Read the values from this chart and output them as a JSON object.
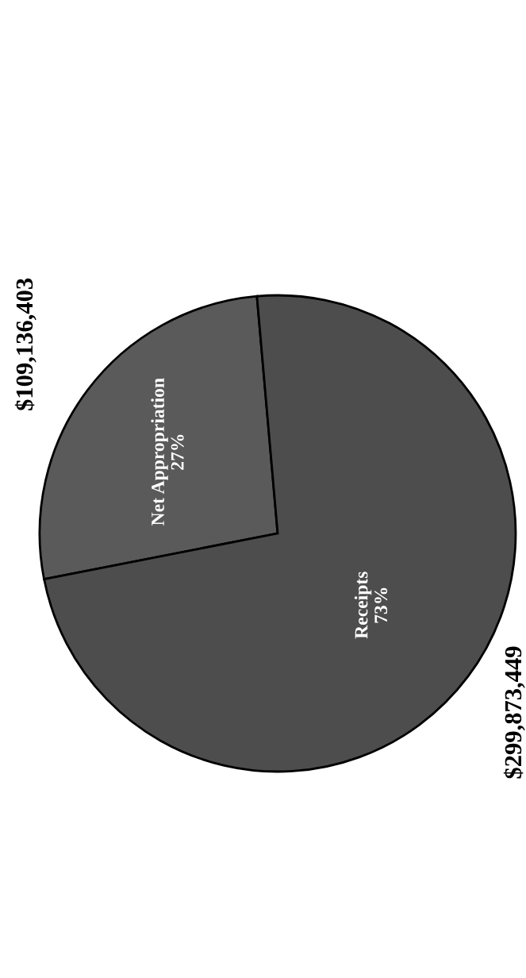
{
  "chart_data": {
    "type": "pie",
    "categories": [
      "Net Appropriation",
      "Receipts"
    ],
    "values": [
      109136403,
      299873449
    ],
    "colors": [
      "#5a5a5a",
      "#4d4d4d"
    ],
    "value_labels": [
      "$109,136,403",
      "$299,873,449"
    ],
    "annotations": [
      {
        "text": "27%",
        "x": "Net Appropriation"
      },
      {
        "text": "73%",
        "x": "Receipts"
      }
    ]
  }
}
